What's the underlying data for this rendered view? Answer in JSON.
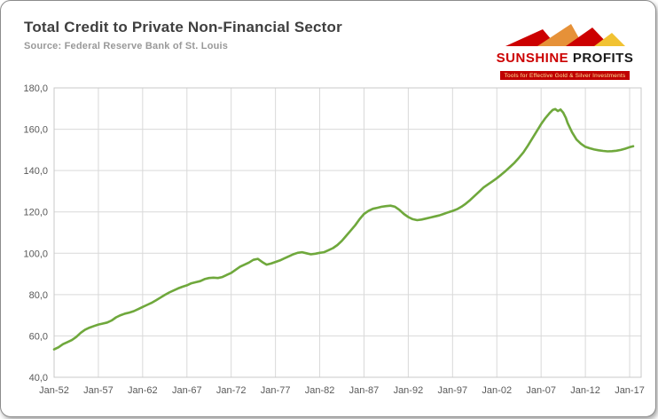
{
  "header": {
    "title": "Total Credit to Private Non-Financial Sector",
    "source": "Source: Federal Reserve Bank of St. Louis"
  },
  "logo": {
    "name_part1": "SUNSHINE",
    "name_part2": " PROFITS",
    "tagline": "Tools for Effective Gold & Silver Investments",
    "red": "#cc0000",
    "yellow": "#f1c232",
    "orange": "#e69138"
  },
  "chart_data": {
    "type": "line",
    "title": "Total Credit to Private Non-Financial Sector",
    "line_color": "#6fa83c",
    "grid": true,
    "legend": "none",
    "x_range": [
      1952,
      2018.3
    ],
    "ylim": [
      40,
      180
    ],
    "y_ticks": [
      {
        "value": 40,
        "label": "40,0"
      },
      {
        "value": 60,
        "label": "60,0"
      },
      {
        "value": 80,
        "label": "80,0"
      },
      {
        "value": 100,
        "label": "100,0"
      },
      {
        "value": 120,
        "label": "120,0"
      },
      {
        "value": 140,
        "label": "140,0"
      },
      {
        "value": 160,
        "label": "160,0"
      },
      {
        "value": 180,
        "label": "180,0"
      }
    ],
    "x_ticks": [
      {
        "value": 1952,
        "label": "Jan-52"
      },
      {
        "value": 1957,
        "label": "Jan-57"
      },
      {
        "value": 1962,
        "label": "Jan-62"
      },
      {
        "value": 1967,
        "label": "Jan-67"
      },
      {
        "value": 1972,
        "label": "Jan-72"
      },
      {
        "value": 1977,
        "label": "Jan-77"
      },
      {
        "value": 1982,
        "label": "Jan-82"
      },
      {
        "value": 1987,
        "label": "Jan-87"
      },
      {
        "value": 1992,
        "label": "Jan-92"
      },
      {
        "value": 1997,
        "label": "Jan-97"
      },
      {
        "value": 2002,
        "label": "Jan-02"
      },
      {
        "value": 2007,
        "label": "Jan-07"
      },
      {
        "value": 2012,
        "label": "Jan-12"
      },
      {
        "value": 2017,
        "label": "Jan-17"
      }
    ],
    "points": [
      [
        1952,
        53.5
      ],
      [
        1952.5,
        54.5
      ],
      [
        1953,
        56
      ],
      [
        1953.5,
        57
      ],
      [
        1954,
        58
      ],
      [
        1954.5,
        59.5
      ],
      [
        1955,
        61.5
      ],
      [
        1955.5,
        63
      ],
      [
        1956,
        64
      ],
      [
        1956.5,
        64.8
      ],
      [
        1957,
        65.5
      ],
      [
        1957.5,
        66
      ],
      [
        1958,
        66.5
      ],
      [
        1958.5,
        67.5
      ],
      [
        1959,
        69
      ],
      [
        1959.5,
        70
      ],
      [
        1960,
        70.8
      ],
      [
        1960.5,
        71.3
      ],
      [
        1961,
        72
      ],
      [
        1961.5,
        73
      ],
      [
        1962,
        74
      ],
      [
        1962.5,
        75
      ],
      [
        1963,
        76
      ],
      [
        1963.5,
        77.2
      ],
      [
        1964,
        78.5
      ],
      [
        1964.5,
        79.8
      ],
      [
        1965,
        81
      ],
      [
        1965.5,
        82
      ],
      [
        1966,
        83
      ],
      [
        1966.5,
        83.8
      ],
      [
        1967,
        84.5
      ],
      [
        1967.5,
        85.5
      ],
      [
        1968,
        86
      ],
      [
        1968.5,
        86.5
      ],
      [
        1969,
        87.5
      ],
      [
        1969.5,
        88
      ],
      [
        1970,
        88.2
      ],
      [
        1970.5,
        88
      ],
      [
        1971,
        88.5
      ],
      [
        1971.5,
        89.5
      ],
      [
        1972,
        90.5
      ],
      [
        1972.5,
        92
      ],
      [
        1973,
        93.5
      ],
      [
        1974,
        95.5
      ],
      [
        1974.5,
        96.8
      ],
      [
        1975,
        97.3
      ],
      [
        1975.5,
        95.8
      ],
      [
        1976,
        94.5
      ],
      [
        1976.5,
        95
      ],
      [
        1977,
        95.8
      ],
      [
        1977.5,
        96.5
      ],
      [
        1978,
        97.5
      ],
      [
        1978.5,
        98.5
      ],
      [
        1979,
        99.5
      ],
      [
        1979.5,
        100.2
      ],
      [
        1980,
        100.5
      ],
      [
        1980.5,
        100
      ],
      [
        1981,
        99.5
      ],
      [
        1981.5,
        99.8
      ],
      [
        1982,
        100.2
      ],
      [
        1982.5,
        100.5
      ],
      [
        1983,
        101.5
      ],
      [
        1983.5,
        102.5
      ],
      [
        1984,
        104
      ],
      [
        1984.5,
        106
      ],
      [
        1985,
        108.5
      ],
      [
        1985.5,
        111
      ],
      [
        1986,
        113.5
      ],
      [
        1986.5,
        116.5
      ],
      [
        1987,
        119
      ],
      [
        1987.5,
        120.5
      ],
      [
        1988,
        121.5
      ],
      [
        1988.5,
        122
      ],
      [
        1989,
        122.5
      ],
      [
        1989.5,
        122.8
      ],
      [
        1990,
        123
      ],
      [
        1990.5,
        122.5
      ],
      [
        1991,
        121
      ],
      [
        1991.5,
        119
      ],
      [
        1992,
        117.5
      ],
      [
        1992.5,
        116.5
      ],
      [
        1993,
        116
      ],
      [
        1993.5,
        116.3
      ],
      [
        1994,
        116.8
      ],
      [
        1994.5,
        117.3
      ],
      [
        1995,
        117.8
      ],
      [
        1995.5,
        118.3
      ],
      [
        1996,
        119
      ],
      [
        1996.5,
        119.8
      ],
      [
        1997,
        120.5
      ],
      [
        1997.5,
        121.3
      ],
      [
        1998,
        122.5
      ],
      [
        1998.5,
        124
      ],
      [
        1999,
        125.8
      ],
      [
        1999.5,
        127.8
      ],
      [
        2000,
        129.8
      ],
      [
        2000.5,
        131.8
      ],
      [
        2001,
        133.3
      ],
      [
        2001.5,
        134.8
      ],
      [
        2002,
        136.3
      ],
      [
        2002.5,
        138
      ],
      [
        2003,
        139.8
      ],
      [
        2003.5,
        141.8
      ],
      [
        2004,
        143.8
      ],
      [
        2004.5,
        146.2
      ],
      [
        2005,
        148.8
      ],
      [
        2005.5,
        152
      ],
      [
        2006,
        155.5
      ],
      [
        2006.5,
        159
      ],
      [
        2007,
        162.5
      ],
      [
        2007.5,
        165.5
      ],
      [
        2008,
        168
      ],
      [
        2008.3,
        169.3
      ],
      [
        2008.6,
        169.8
      ],
      [
        2008.9,
        168.8
      ],
      [
        2009.2,
        169.5
      ],
      [
        2009.5,
        168
      ],
      [
        2009.8,
        165.5
      ],
      [
        2010,
        163
      ],
      [
        2010.5,
        158.5
      ],
      [
        2011,
        155
      ],
      [
        2011.5,
        153
      ],
      [
        2012,
        151.5
      ],
      [
        2012.5,
        150.8
      ],
      [
        2013,
        150.2
      ],
      [
        2013.5,
        149.8
      ],
      [
        2014,
        149.5
      ],
      [
        2014.5,
        149.3
      ],
      [
        2015,
        149.4
      ],
      [
        2015.5,
        149.6
      ],
      [
        2016,
        150
      ],
      [
        2016.5,
        150.6
      ],
      [
        2017,
        151.3
      ],
      [
        2017.4,
        151.8
      ]
    ]
  }
}
